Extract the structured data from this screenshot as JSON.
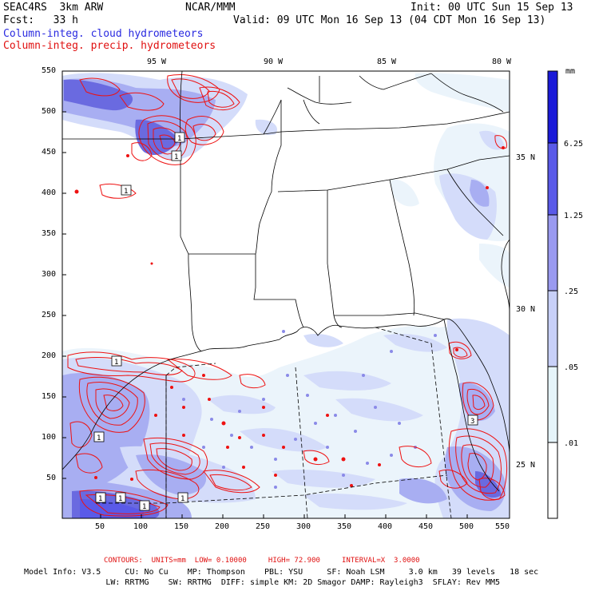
{
  "header": {
    "model": "SEAC4RS  3km ARW",
    "org": "NCAR/MMM",
    "init": "Init: 00 UTC Sun 15 Sep 13",
    "fcst": "Fcst:   33 h",
    "valid": "Valid: 09 UTC Mon 16 Sep 13 (04 CDT Mon 16 Sep 13)",
    "field_blue": "Column-integ. cloud hydrometeors",
    "field_red": "Column-integ. precip. hydrometeors"
  },
  "axes": {
    "x_ticks": [
      "50",
      "100",
      "150",
      "200",
      "250",
      "300",
      "350",
      "400",
      "450",
      "500",
      "550"
    ],
    "y_ticks": [
      "550",
      "500",
      "450",
      "400",
      "350",
      "300",
      "250",
      "200",
      "150",
      "100",
      "50"
    ],
    "lon_labels": [
      "95 W",
      "90 W",
      "85 W",
      "80 W"
    ],
    "lat_labels": [
      "35 N",
      "30 N",
      "25 N"
    ]
  },
  "colorbar": {
    "unit": "mm",
    "labels": [
      "6.25",
      "1.25",
      ".25",
      ".05",
      ".01"
    ],
    "colors": [
      "#1a1ad8",
      "#5a5ae8",
      "#9a9af0",
      "#c8d0f8",
      "#e6f4fa",
      "#ffffff"
    ]
  },
  "colors": {
    "cloud_dark": "#6a6ae0",
    "cloud_mid": "#a8aef2",
    "cloud_light": "#d4dcfa",
    "cloud_faint": "#ebf4fb",
    "precip_contour": "#ee1111",
    "map_lines": "#000000"
  },
  "footer": {
    "contours": "CONTOURS:  UNITS=mm  LOW= 0.10000     HIGH= 72.900     INTERVAL=X  3.0000",
    "model_info_1": "Model Info: V3.5     CU: No Cu    MP: Thompson    PBL: YSU     SF: Noah LSM     3.0 km   39 levels   18 sec",
    "model_info_2": "                 LW: RRTMG    SW: RRTMG  DIFF: simple KM: 2D Smagor DAMP: Rayleigh3  SFLAY: Rev MM5"
  },
  "contour_labels": [
    "1",
    "1",
    "1",
    "1",
    "1",
    "1",
    "3",
    "1",
    "1",
    "1"
  ]
}
